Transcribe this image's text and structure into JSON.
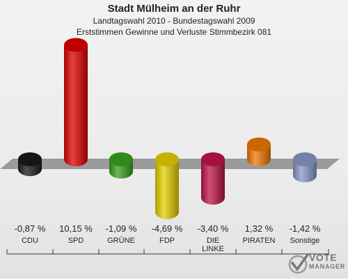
{
  "chart_data": {
    "type": "bar",
    "title": "Stadt Mülheim an der Ruhr",
    "subtitle": "Landtagswahl 2010 - Bundestagswahl 2009",
    "subtitle2": "Erststimmen Gewinne und Verluste Stimmbezirk 081",
    "categories": [
      "CDU",
      "SPD",
      "GRÜNE",
      "FDP",
      "DIE LINKE",
      "PIRATEN",
      "Sonstige"
    ],
    "category_lines": [
      [
        "CDU"
      ],
      [
        "SPD"
      ],
      [
        "GRÜNE"
      ],
      [
        "FDP"
      ],
      [
        "DIE",
        "LINKE"
      ],
      [
        "PIRATEN"
      ],
      [
        "Sonstige"
      ]
    ],
    "values": [
      -0.87,
      10.15,
      -1.09,
      -4.69,
      -3.4,
      1.32,
      -1.42
    ],
    "value_labels": [
      "-0,87 %",
      "10,15 %",
      "-1,09 %",
      "-4,69 %",
      "-3,40 %",
      "1,32 %",
      "-1,42 %"
    ],
    "colors": [
      "#1a1a1a",
      "#e00000",
      "#3aa020",
      "#e6d000",
      "#c0144a",
      "#f07800",
      "#8898c8"
    ]
  },
  "logo": {
    "line1": "VOTE",
    "line2": "MANAGER"
  }
}
